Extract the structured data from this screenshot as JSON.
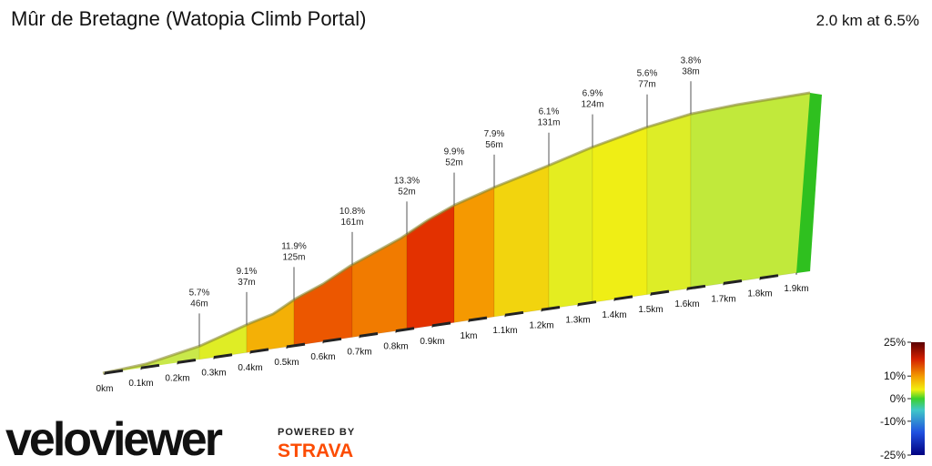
{
  "chart_data": {
    "type": "profile",
    "title": "Mûr de Bretagne (Watopia Climb Portal)",
    "subtitle": "2.0 km at 6.5%",
    "xlim": [
      0,
      1.9
    ],
    "xticks": [
      {
        "value": 0,
        "label": "0km"
      },
      {
        "value": 0.1,
        "label": "0.1km"
      },
      {
        "value": 0.2,
        "label": "0.2km"
      },
      {
        "value": 0.3,
        "label": "0.3km"
      },
      {
        "value": 0.4,
        "label": "0.4km"
      },
      {
        "value": 0.5,
        "label": "0.5km"
      },
      {
        "value": 0.6,
        "label": "0.6km"
      },
      {
        "value": 0.7,
        "label": "0.7km"
      },
      {
        "value": 0.8,
        "label": "0.8km"
      },
      {
        "value": 0.9,
        "label": "0.9km"
      },
      {
        "value": 1,
        "label": "1km"
      },
      {
        "value": 1.1,
        "label": "1.1km"
      },
      {
        "value": 1.2,
        "label": "1.2km"
      },
      {
        "value": 1.3,
        "label": "1.3km"
      },
      {
        "value": 1.4,
        "label": "1.4km"
      },
      {
        "value": 1.5,
        "label": "1.5km"
      },
      {
        "value": 1.6,
        "label": "1.6km"
      },
      {
        "value": 1.7,
        "label": "1.7km"
      },
      {
        "value": 1.8,
        "label": "1.8km"
      },
      {
        "value": 1.9,
        "label": "1.9km"
      }
    ],
    "x": [
      0.26,
      0.39,
      0.52,
      0.68,
      0.83,
      0.96,
      1.07,
      1.22,
      1.34,
      1.49,
      1.61
    ],
    "values": [
      5.7,
      9.1,
      11.9,
      10.8,
      13.3,
      9.9,
      7.9,
      6.1,
      6.9,
      5.6,
      3.8
    ],
    "value_labels": [
      "5.7%",
      "9.1%",
      "11.9%",
      "10.8%",
      "13.3%",
      "9.9%",
      "7.9%",
      "6.1%",
      "6.9%",
      "5.6%",
      "3.8%"
    ],
    "lengths": [
      46,
      37,
      125,
      161,
      52,
      52,
      56,
      131,
      124,
      77,
      38
    ],
    "length_labels": [
      "46m",
      "37m",
      "125m",
      "161m",
      "52m",
      "52m",
      "56m",
      "131m",
      "124m",
      "77m",
      "38m"
    ],
    "colorbar": {
      "lim": [
        -25,
        25
      ],
      "ticks": [
        {
          "value": 25,
          "label": "25%"
        },
        {
          "value": 10,
          "label": "10%"
        },
        {
          "value": 0,
          "label": "0%"
        },
        {
          "value": -10,
          "label": "-10%"
        },
        {
          "value": -25,
          "label": "-25%"
        }
      ]
    }
  },
  "branding": {
    "logo": "veloviewer",
    "powered": "POWERED BY",
    "partner": "STRAVA"
  }
}
